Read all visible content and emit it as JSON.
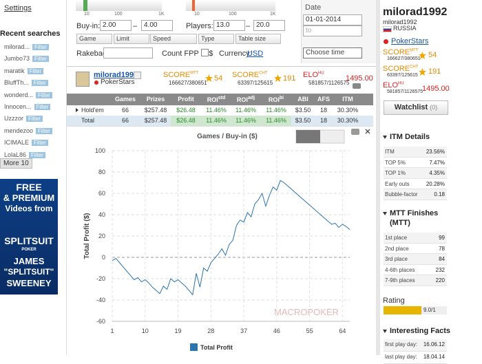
{
  "sidebar": {
    "settings": "Settings",
    "recent_title": "Recent searches",
    "recent": [
      "milorad...",
      "Jumbo73",
      "maratik",
      "BluffTh...",
      "wonderd...",
      "Innocen...",
      "Uzzzor",
      "mendezoo",
      "ICIMALE",
      "LolaL86"
    ],
    "filter": "Filter",
    "more": "More 10",
    "ad": [
      "FREE",
      "& PREMIUM",
      "Videos from",
      "SPLITSUIT",
      "POKER",
      "JAMES",
      "\"SPLITSUIT\"",
      "SWEENEY"
    ]
  },
  "filters": {
    "slider_ticks": [
      "10",
      "100",
      "1K"
    ],
    "buyin_label": "Buy-in:",
    "buyin_from": "2.00",
    "buyin_to": "4.00",
    "range_sep": "–",
    "players_label": "Players:",
    "players_from": "13.0",
    "players_to": "20.0",
    "selects": [
      "Game",
      "Limit",
      "Speed",
      "Type",
      "Table size"
    ],
    "rakeback": "Rakeback:",
    "fpp": "Count FPP in $",
    "currency_label": "Currency:",
    "currency": "USD",
    "date_label": "Date",
    "date_from": "01-01-2014",
    "date_to": "to",
    "choose_time": "Choose time"
  },
  "player": {
    "name": "milorad1992",
    "site": "PokerStars",
    "scores": [
      {
        "label": "SCORE",
        "sup": "MTT",
        "rank": "166627/380651",
        "stars": "54"
      },
      {
        "label": "SCORE",
        "sup": "CHT",
        "rank": "63397/125615",
        "stars": "191"
      },
      {
        "label": "ELO",
        "sup": "HU",
        "rank": "581857/1126575",
        "value": "1495.00"
      }
    ]
  },
  "stats_table": {
    "headers": [
      {
        "text": "Games"
      },
      {
        "text": "Prizes"
      },
      {
        "text": "Profit"
      },
      {
        "text": "ROI",
        "sup": "std"
      },
      {
        "text": "ROI",
        "sup": "adj"
      },
      {
        "text": "ROI",
        "sup": "bi"
      },
      {
        "text": "ABI"
      },
      {
        "text": "AFS"
      },
      {
        "text": "ITM"
      }
    ],
    "rows": [
      [
        "Hold'em",
        "66",
        "$257.48",
        "$26.48",
        "11.46%",
        "11.46%",
        "11.46%",
        "$3.50",
        "18",
        "30.30%"
      ],
      [
        "Total",
        "66",
        "$257.48",
        "$26.48",
        "11.46%",
        "11.46%",
        "11.46%",
        "$3.50",
        "18",
        "30.30%"
      ]
    ]
  },
  "profile": {
    "name": "milorad1992",
    "username": "milorad1992",
    "country": "RUSSIA",
    "watchlist": "Watchlist",
    "watch_count": "(0)"
  },
  "itm": {
    "title": "ITM Details",
    "rows": [
      [
        "ITM",
        "23.56%"
      ],
      [
        "TOP 5%",
        "7.47%"
      ],
      [
        "TOP 1%",
        "4.35%"
      ],
      [
        "Early outs",
        "20.28%"
      ],
      [
        "Bubble-factor",
        "0.18"
      ]
    ]
  },
  "mtt": {
    "title": "MTT Finishes",
    "subtitle": "(MTT)",
    "rows": [
      [
        "1st place",
        "99"
      ],
      [
        "2nd place",
        "78"
      ],
      [
        "3rd place",
        "84"
      ],
      [
        "4-6th places",
        "232"
      ],
      [
        "7-9th places",
        "220"
      ]
    ]
  },
  "rating": {
    "title": "Rating",
    "value": "9.0/1"
  },
  "facts": {
    "title": "Interesting Facts",
    "rows": [
      [
        "first play day:",
        "16.06.12"
      ],
      [
        "last play day:",
        "18.04.14"
      ]
    ]
  },
  "chart_data": {
    "type": "line",
    "title": "Games / Buy-in ($)",
    "y_label": "Total Profit ($)",
    "watermark": "MACROPOKER",
    "x": [
      1,
      2,
      3,
      4,
      5,
      6,
      7,
      8,
      9,
      10,
      11,
      12,
      13,
      14,
      15,
      16,
      17,
      18,
      19,
      20,
      21,
      22,
      23,
      24,
      25,
      26,
      27,
      28,
      29,
      30,
      31,
      32,
      33,
      34,
      35,
      36,
      37,
      38,
      39,
      40,
      41,
      42,
      43,
      44,
      45,
      46,
      47,
      48,
      49,
      50,
      51,
      52,
      53,
      54,
      55,
      56,
      57,
      58,
      59,
      60,
      61,
      62,
      63,
      64,
      65,
      66
    ],
    "series": [
      {
        "name": "Total Profit",
        "color": "#2a74b0",
        "values": [
          -3,
          -1,
          -5,
          -9,
          -13,
          -17,
          -21,
          -19,
          -23,
          -21,
          -24,
          -28,
          -31,
          -34,
          -27,
          -30,
          -20,
          -23,
          -21,
          -24,
          -27,
          -31,
          -35,
          -15,
          -28,
          -10,
          -13,
          -5,
          -1,
          3,
          8,
          2,
          12,
          16,
          30,
          35,
          33,
          42,
          38,
          50,
          54,
          60,
          48,
          58,
          66,
          63,
          72,
          70,
          67,
          64,
          61,
          58,
          55,
          52,
          49,
          46,
          43,
          40,
          37,
          34,
          31,
          32,
          28,
          31,
          29,
          26
        ]
      }
    ],
    "xlim": [
      1,
      66
    ],
    "ylim": [
      -60,
      100
    ],
    "xticks": [
      1,
      10,
      19,
      28,
      37,
      46,
      55,
      64
    ],
    "yticks": [
      -60,
      -40,
      -20,
      0,
      20,
      40,
      60,
      80,
      100
    ],
    "grid": true
  }
}
